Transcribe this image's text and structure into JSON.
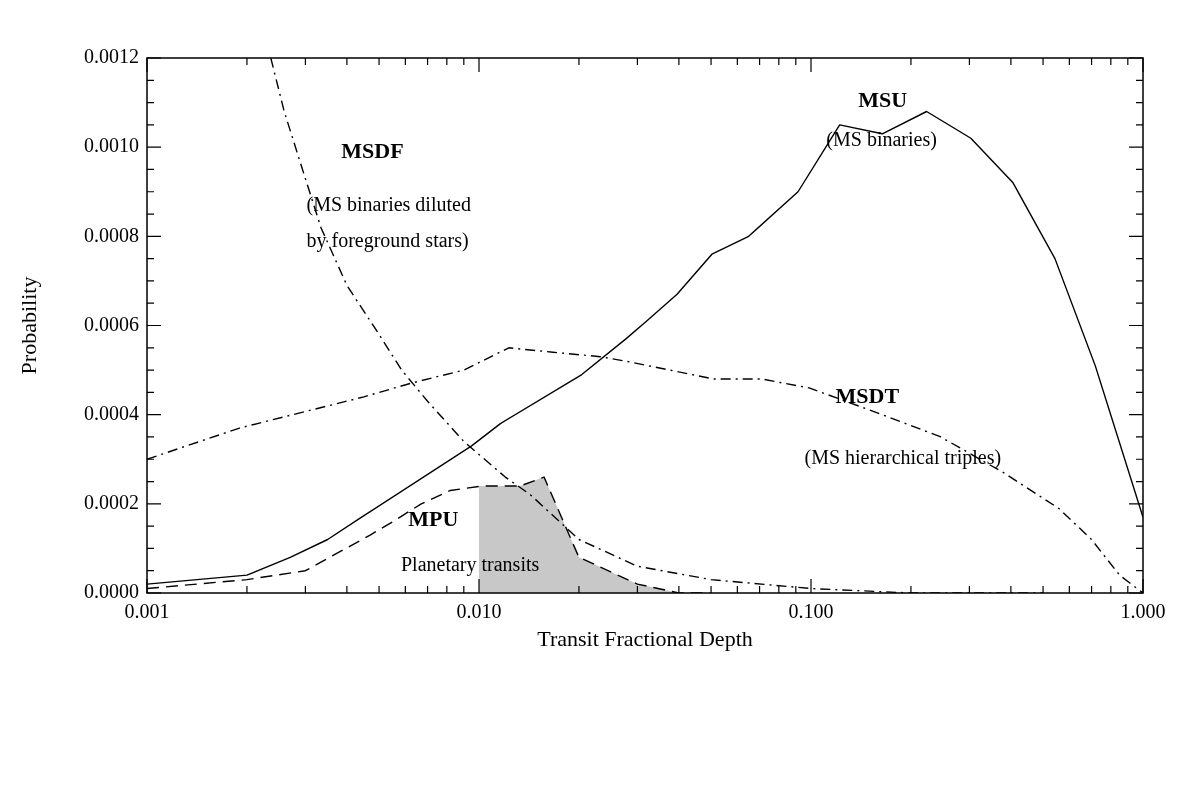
{
  "chart_data": {
    "type": "line",
    "xlabel": "Transit Fractional Depth",
    "ylabel": "Probability",
    "log": "x",
    "grid": false,
    "legend": false,
    "marker": "none",
    "xlim": [
      0.001,
      1.0
    ],
    "xticks": [
      {
        "value": 0.001,
        "label": "0.001"
      },
      {
        "value": 0.002,
        "label": null
      },
      {
        "value": 0.003,
        "label": null
      },
      {
        "value": 0.004,
        "label": null
      },
      {
        "value": 0.005,
        "label": null
      },
      {
        "value": 0.006,
        "label": null
      },
      {
        "value": 0.007,
        "label": null
      },
      {
        "value": 0.008,
        "label": null
      },
      {
        "value": 0.009,
        "label": null
      },
      {
        "value": 0.01,
        "label": "0.010"
      },
      {
        "value": 0.02,
        "label": null
      },
      {
        "value": 0.03,
        "label": null
      },
      {
        "value": 0.04,
        "label": null
      },
      {
        "value": 0.05,
        "label": null
      },
      {
        "value": 0.06,
        "label": null
      },
      {
        "value": 0.07,
        "label": null
      },
      {
        "value": 0.08,
        "label": null
      },
      {
        "value": 0.09,
        "label": null
      },
      {
        "value": 0.1,
        "label": "0.100"
      },
      {
        "value": 0.2,
        "label": null
      },
      {
        "value": 0.3,
        "label": null
      },
      {
        "value": 0.4,
        "label": null
      },
      {
        "value": 0.5,
        "label": null
      },
      {
        "value": 0.6,
        "label": null
      },
      {
        "value": 0.7,
        "label": null
      },
      {
        "value": 0.8,
        "label": null
      },
      {
        "value": 0.9,
        "label": null
      },
      {
        "value": 1.0,
        "label": "1.000"
      }
    ],
    "ylim": [
      0,
      0.0012
    ],
    "yticks": [
      {
        "value": 0,
        "label": "0.0000"
      },
      {
        "value": 5e-05,
        "label": null
      },
      {
        "value": 0.0001,
        "label": null
      },
      {
        "value": 0.00015,
        "label": null
      },
      {
        "value": 0.0002,
        "label": "0.0002"
      },
      {
        "value": 0.00025,
        "label": null
      },
      {
        "value": 0.0003,
        "label": null
      },
      {
        "value": 0.00035,
        "label": null
      },
      {
        "value": 0.0004,
        "label": "0.0004"
      },
      {
        "value": 0.00045,
        "label": null
      },
      {
        "value": 0.0005,
        "label": null
      },
      {
        "value": 0.00055,
        "label": null
      },
      {
        "value": 0.0006,
        "label": "0.0006"
      },
      {
        "value": 0.00065,
        "label": null
      },
      {
        "value": 0.0007,
        "label": null
      },
      {
        "value": 0.00075,
        "label": null
      },
      {
        "value": 0.0008,
        "label": "0.0008"
      },
      {
        "value": 0.00085,
        "label": null
      },
      {
        "value": 0.0009,
        "label": null
      },
      {
        "value": 0.00095,
        "label": null
      },
      {
        "value": 0.001,
        "label": "0.0010"
      },
      {
        "value": 0.00105,
        "label": null
      },
      {
        "value": 0.0011,
        "label": null
      },
      {
        "value": 0.00115,
        "label": null
      },
      {
        "value": 0.0012,
        "label": "0.0012"
      }
    ],
    "series": [
      {
        "color": "#000000",
        "line_style": "solid",
        "x": [
          0.001,
          0.002,
          0.0027,
          0.0035,
          0.00443,
          0.0095,
          0.0116,
          0.0204,
          0.0277,
          0.032,
          0.0395,
          0.0503,
          0.0649,
          0.0914,
          0.122,
          0.164,
          0.223,
          0.303,
          0.406,
          0.543,
          0.718,
          1.0
        ],
        "values": [
          2e-05,
          4e-05,
          8e-05,
          0.00012,
          0.00017,
          0.00033,
          0.00038,
          0.00049,
          0.00057,
          0.00061,
          0.00067,
          0.00076,
          0.0008,
          0.0009,
          0.00105,
          0.00103,
          0.00108,
          0.00102,
          0.00092,
          0.00075,
          0.00051,
          0.00017
        ]
      },
      {
        "color": "#000000",
        "line_style": "dashdot",
        "x": [
          0.00236,
          0.00259,
          0.00294,
          0.00334,
          0.004,
          0.0049,
          0.00585,
          0.007,
          0.009,
          0.012,
          0.0143,
          0.02,
          0.03,
          0.05,
          0.1,
          0.2,
          0.3,
          0.5
        ],
        "values": [
          0.0012,
          0.00108,
          0.00095,
          0.00082,
          0.00069,
          0.00059,
          0.0005,
          0.00043,
          0.00034,
          0.00026,
          0.00022,
          0.00012,
          6e-05,
          3e-05,
          1e-05,
          0,
          0,
          0
        ]
      },
      {
        "color": "#000000",
        "line_style": "dashdot",
        "x": [
          0.001,
          0.0019,
          0.0045,
          0.0062,
          0.009,
          0.0123,
          0.0167,
          0.0232,
          0.0277,
          0.0509,
          0.071,
          0.0987,
          0.164,
          0.246,
          0.38,
          0.557,
          0.7,
          0.85,
          1.0
        ],
        "values": [
          0.0003,
          0.00037,
          0.00044,
          0.00047,
          0.0005,
          0.00055,
          0.00054,
          0.00053,
          0.00052,
          0.00048,
          0.00048,
          0.00046,
          0.0004,
          0.00035,
          0.00027,
          0.00019,
          0.00012,
          4e-05,
          0
        ]
      },
      {
        "color": "#000000",
        "line_style": "dashed",
        "x": [
          0.001,
          0.002,
          0.003,
          0.0047,
          0.0055,
          0.0067,
          0.0082,
          0.0102,
          0.0133,
          0.0157,
          0.02,
          0.03,
          0.04,
          0.05
        ],
        "values": [
          1e-05,
          3e-05,
          5e-05,
          0.00013,
          0.00016,
          0.0002,
          0.00023,
          0.00024,
          0.00024,
          0.00026,
          8e-05,
          2e-05,
          0,
          0
        ]
      },
      {
        "type": "area",
        "color": "#c8c8c8",
        "x": [
          0.01,
          0.0133,
          0.0157,
          0.02,
          0.03,
          0.04,
          0.05
        ],
        "values": [
          0.00024,
          0.00024,
          0.00026,
          8e-05,
          2e-05,
          0,
          0
        ]
      }
    ],
    "annotations": [
      {
        "text": "MSU",
        "x": 0.223,
        "y": 0.00108
      },
      {
        "text": "(MS binaries)",
        "x": 0.223,
        "y": 0.00108
      },
      {
        "text": "MSDF",
        "x": 0.00294,
        "y": 0.00095
      },
      {
        "text": "(MS binaries diluted",
        "x": 0.00294,
        "y": 0.00095
      },
      {
        "text": "by foreground stars)",
        "x": 0.00294,
        "y": 0.00095
      },
      {
        "text": "MSDT",
        "x": 0.164,
        "y": 0.0004
      },
      {
        "text": "(MS hierarchical triples)",
        "x": 0.246,
        "y": 0.00035
      },
      {
        "text": "MPU",
        "x": 0.0067,
        "y": 0.0002
      },
      {
        "text": "Planetary transits",
        "x": 0.0047,
        "y": 0.00013
      }
    ]
  }
}
